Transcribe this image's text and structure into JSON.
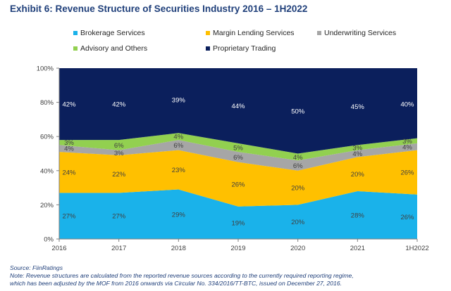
{
  "title": "Exhibit 6: Revenue Structure of Securities Industry 2016 – 1H2022",
  "source": "Source: FiinRatings",
  "note_line1": "Note: Revenue structures are calculated from the reported revenue sources according to the currently required reporting regime,",
  "note_line2": "which has been adjusted by the MOF from 2016 onwards via Circular No. 334/2016/TT-BTC, issued on December 27, 2016.",
  "chart_data": {
    "type": "area",
    "stacked": true,
    "x": [
      "2016",
      "2017",
      "2018",
      "2019",
      "2020",
      "2021",
      "1H2022"
    ],
    "yticks": [
      "0%",
      "20%",
      "40%",
      "60%",
      "80%",
      "100%"
    ],
    "ylim": [
      0,
      100
    ],
    "grid": false,
    "legend_position": "top",
    "series": [
      {
        "name": "Brokerage Services",
        "color": "#1ab2ea",
        "values": [
          27,
          27,
          29,
          19,
          20,
          28,
          26
        ],
        "labels": [
          "27%",
          "27%",
          "29%",
          "19%",
          "20%",
          "28%",
          "26%"
        ]
      },
      {
        "name": "Margin Lending Services",
        "color": "#ffc000",
        "values": [
          24,
          22,
          23,
          26,
          20,
          20,
          26
        ],
        "labels": [
          "24%",
          "22%",
          "23%",
          "26%",
          "20%",
          "20%",
          "26%"
        ]
      },
      {
        "name": "Underwriting Services",
        "color": "#a6a6a6",
        "values": [
          4,
          3,
          6,
          6,
          6,
          4,
          4
        ],
        "labels": [
          "4%",
          "3%",
          "6%",
          "6%",
          "6%",
          "4%",
          "4%"
        ]
      },
      {
        "name": "Advisory and Others",
        "color": "#92d050",
        "values": [
          3,
          6,
          4,
          5,
          4,
          3,
          3
        ],
        "labels": [
          "3%",
          "6%",
          "4%",
          "5%",
          "4%",
          "3%",
          "3%"
        ]
      },
      {
        "name": "Proprietary Trading",
        "color": "#0b1f5c",
        "values": [
          42,
          42,
          39,
          44,
          50,
          45,
          40
        ],
        "labels": [
          "42%",
          "42%",
          "39%",
          "44%",
          "50%",
          "45%",
          "40%"
        ]
      }
    ]
  }
}
